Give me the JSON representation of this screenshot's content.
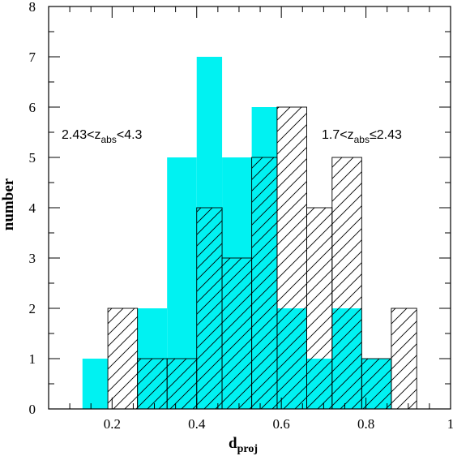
{
  "chart_data": {
    "type": "bar",
    "xlabel": "d",
    "xlabel_sub": "proj",
    "ylabel": "number",
    "xlim": [
      0.05,
      1.0
    ],
    "ylim": [
      0,
      8
    ],
    "x_ticks": [
      0.2,
      0.4,
      0.6,
      0.8,
      1
    ],
    "x_tick_labels": [
      "0.2",
      "0.4",
      "0.6",
      "0.8",
      "1"
    ],
    "y_ticks": [
      0,
      1,
      2,
      3,
      4,
      5,
      6,
      7,
      8
    ],
    "y_tick_labels": [
      "0",
      "1",
      "2",
      "3",
      "4",
      "5",
      "6",
      "7",
      "8"
    ],
    "bin_edges": [
      0.13,
      0.19,
      0.26,
      0.33,
      0.4,
      0.46,
      0.53,
      0.59,
      0.66,
      0.72,
      0.79,
      0.86,
      0.92
    ],
    "series": [
      {
        "values": [
          1,
          0,
          2,
          5,
          7,
          5,
          6,
          2,
          1,
          2,
          1,
          0
        ],
        "fill": "#00f2f2",
        "style": "solid"
      },
      {
        "values": [
          0,
          2,
          1,
          1,
          4,
          3,
          5,
          6,
          4,
          5,
          1,
          2
        ],
        "fill": "none",
        "style": "hatched"
      }
    ],
    "annotations": [
      {
        "pre": "2.43<z",
        "sub": "abs",
        "post": "<4.3",
        "position": "upper-left"
      },
      {
        "pre": "1.7<z",
        "sub": "abs",
        "post": "≤2.43",
        "position": "upper-right"
      }
    ],
    "grid": false,
    "colors": {
      "cyan": "#00f2f2",
      "line": "#000000"
    }
  }
}
